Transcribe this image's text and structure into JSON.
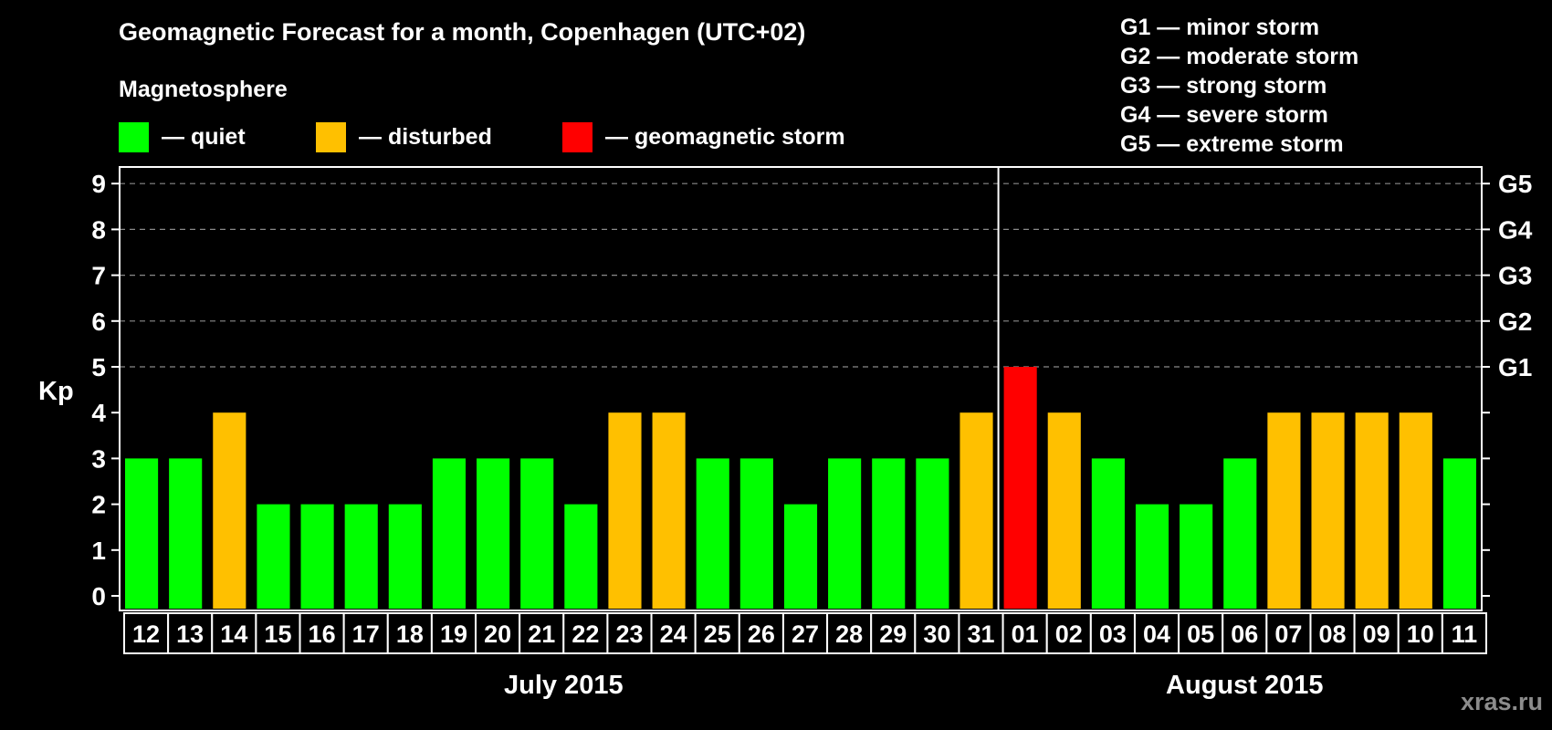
{
  "header": {
    "title": "Geomagnetic Forecast for a month, Copenhagen (UTC+02)",
    "subtitle": "Magnetosphere"
  },
  "legend": [
    {
      "label": "— quiet",
      "color": "#00ff00"
    },
    {
      "label": "— disturbed",
      "color": "#ffc000"
    },
    {
      "label": "— geomagnetic storm",
      "color": "#ff0000"
    }
  ],
  "storm_scale": [
    "G1 — minor storm",
    "G2 — moderate storm",
    "G3 — strong storm",
    "G4 — severe storm",
    "G5 — extreme storm"
  ],
  "watermark": "xras.ru",
  "chart_data": {
    "type": "bar",
    "title": "Geomagnetic Forecast for a month, Copenhagen (UTC+02)",
    "ylabel": "Kp",
    "ylim": [
      0,
      9
    ],
    "yticks": [
      "0",
      "1",
      "2",
      "3",
      "4",
      "5",
      "6",
      "7",
      "8",
      "9"
    ],
    "right_ticks": [
      {
        "kp": 5,
        "label": "G1"
      },
      {
        "kp": 6,
        "label": "G2"
      },
      {
        "kp": 7,
        "label": "G3"
      },
      {
        "kp": 8,
        "label": "G4"
      },
      {
        "kp": 9,
        "label": "G5"
      }
    ],
    "grid": "dashed horizontal at Kp 5-9",
    "categories": [
      "12",
      "13",
      "14",
      "15",
      "16",
      "17",
      "18",
      "19",
      "20",
      "21",
      "22",
      "23",
      "24",
      "25",
      "26",
      "27",
      "28",
      "29",
      "30",
      "31",
      "01",
      "02",
      "03",
      "04",
      "05",
      "06",
      "07",
      "08",
      "09",
      "10",
      "11"
    ],
    "values": [
      3,
      3,
      4,
      2,
      2,
      2,
      2,
      3,
      3,
      3,
      2,
      4,
      4,
      3,
      3,
      2,
      3,
      3,
      3,
      4,
      5,
      4,
      3,
      2,
      2,
      3,
      4,
      4,
      4,
      4,
      3
    ],
    "status": [
      "quiet",
      "quiet",
      "disturbed",
      "quiet",
      "quiet",
      "quiet",
      "quiet",
      "quiet",
      "quiet",
      "quiet",
      "quiet",
      "disturbed",
      "disturbed",
      "quiet",
      "quiet",
      "quiet",
      "quiet",
      "quiet",
      "quiet",
      "disturbed",
      "storm",
      "disturbed",
      "quiet",
      "quiet",
      "quiet",
      "quiet",
      "disturbed",
      "disturbed",
      "disturbed",
      "disturbed",
      "quiet"
    ],
    "colors": {
      "quiet": "#00ff00",
      "disturbed": "#ffc000",
      "storm": "#ff0000"
    },
    "months": [
      {
        "label": "July 2015",
        "first_index": 0,
        "last_index": 19
      },
      {
        "label": "August 2015",
        "first_index": 20,
        "last_index": 30
      }
    ]
  }
}
